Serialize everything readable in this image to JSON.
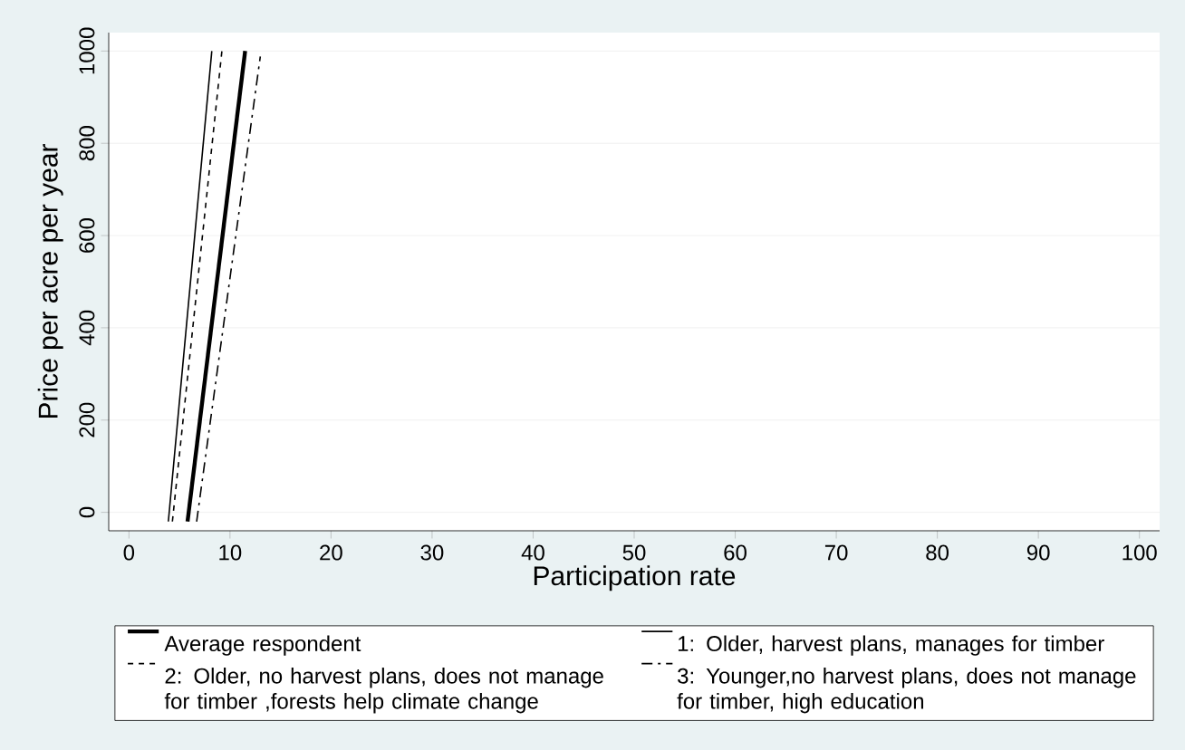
{
  "chart_data": {
    "type": "line",
    "xlabel": "Participation rate",
    "ylabel": "Price per acre per year",
    "xlim": [
      -2,
      102
    ],
    "ylim": [
      -40,
      1040
    ],
    "xticks": [
      0,
      10,
      20,
      30,
      40,
      50,
      60,
      70,
      80,
      90,
      100
    ],
    "yticks": [
      0,
      200,
      400,
      600,
      800,
      1000
    ],
    "grid": "y",
    "legend": "bottom",
    "marker": "none",
    "series": [
      {
        "name": "Average respondent",
        "color": "#000000",
        "line_style": "solid",
        "x": [
          5.8,
          11.5
        ],
        "values": [
          -20,
          1000
        ]
      },
      {
        "name": "1: Older, harvest plans, manages for timber",
        "color": "#000000",
        "line_style": "solid",
        "x": [
          3.9,
          8.2
        ],
        "values": [
          -20,
          1000
        ]
      },
      {
        "name": "2: Older, no harvest plans, does not manage for timber ,forests help climate change",
        "color": "#000000",
        "line_style": "dashed",
        "x": [
          4.3,
          9.2
        ],
        "values": [
          -20,
          1000
        ]
      },
      {
        "name": "3: Younger,no harvest plans, does not manage for timber, high education",
        "color": "#000000",
        "line_style": "dashdot",
        "x": [
          6.7,
          13.0
        ],
        "values": [
          -20,
          988
        ]
      }
    ]
  }
}
